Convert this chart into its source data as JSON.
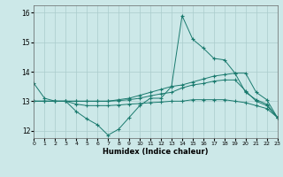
{
  "bg_color": "#cce8e8",
  "grid_color": "#aacccc",
  "line_color": "#1a7a6e",
  "xlabel": "Humidex (Indice chaleur)",
  "xlim": [
    0,
    23
  ],
  "ylim": [
    11.75,
    16.25
  ],
  "yticks": [
    12,
    13,
    14,
    15,
    16
  ],
  "xticks": [
    0,
    1,
    2,
    3,
    4,
    5,
    6,
    7,
    8,
    9,
    10,
    11,
    12,
    13,
    14,
    15,
    16,
    17,
    18,
    19,
    20,
    21,
    22,
    23
  ],
  "series": [
    {
      "x": [
        0,
        1,
        2,
        3,
        4,
        5,
        6,
        7,
        8,
        9,
        10,
        11,
        12,
        13,
        14,
        15,
        16,
        17,
        18,
        19,
        20,
        21,
        22,
        23
      ],
      "y": [
        13.6,
        13.1,
        13.0,
        13.0,
        12.65,
        12.4,
        12.2,
        11.85,
        12.05,
        12.45,
        12.85,
        13.1,
        13.1,
        13.5,
        15.9,
        15.1,
        14.8,
        14.45,
        14.4,
        13.95,
        13.3,
        13.05,
        12.9,
        12.45
      ]
    },
    {
      "x": [
        0,
        1,
        2,
        3,
        4,
        5,
        6,
        7,
        8,
        9,
        10,
        11,
        12,
        13,
        14,
        15,
        16,
        17,
        18,
        19,
        20,
        21,
        22,
        23
      ],
      "y": [
        13.0,
        13.0,
        13.0,
        13.0,
        13.0,
        13.0,
        13.0,
        13.0,
        13.05,
        13.1,
        13.2,
        13.3,
        13.4,
        13.5,
        13.55,
        13.65,
        13.75,
        13.85,
        13.9,
        13.95,
        13.95,
        13.3,
        13.05,
        12.45
      ]
    },
    {
      "x": [
        0,
        1,
        2,
        3,
        4,
        5,
        6,
        7,
        8,
        9,
        10,
        11,
        12,
        13,
        14,
        15,
        16,
        17,
        18,
        19,
        20,
        21,
        22,
        23
      ],
      "y": [
        13.0,
        13.0,
        13.0,
        13.0,
        13.0,
        13.0,
        13.0,
        13.0,
        13.02,
        13.05,
        13.1,
        13.18,
        13.25,
        13.3,
        13.45,
        13.55,
        13.6,
        13.68,
        13.72,
        13.72,
        13.35,
        13.0,
        12.85,
        12.45
      ]
    },
    {
      "x": [
        0,
        1,
        2,
        3,
        4,
        5,
        6,
        7,
        8,
        9,
        10,
        11,
        12,
        13,
        14,
        15,
        16,
        17,
        18,
        19,
        20,
        21,
        22,
        23
      ],
      "y": [
        13.0,
        13.0,
        13.0,
        13.0,
        12.9,
        12.85,
        12.85,
        12.85,
        12.87,
        12.9,
        12.92,
        12.95,
        12.97,
        13.0,
        13.0,
        13.05,
        13.05,
        13.05,
        13.05,
        13.0,
        12.95,
        12.85,
        12.75,
        12.45
      ]
    }
  ]
}
